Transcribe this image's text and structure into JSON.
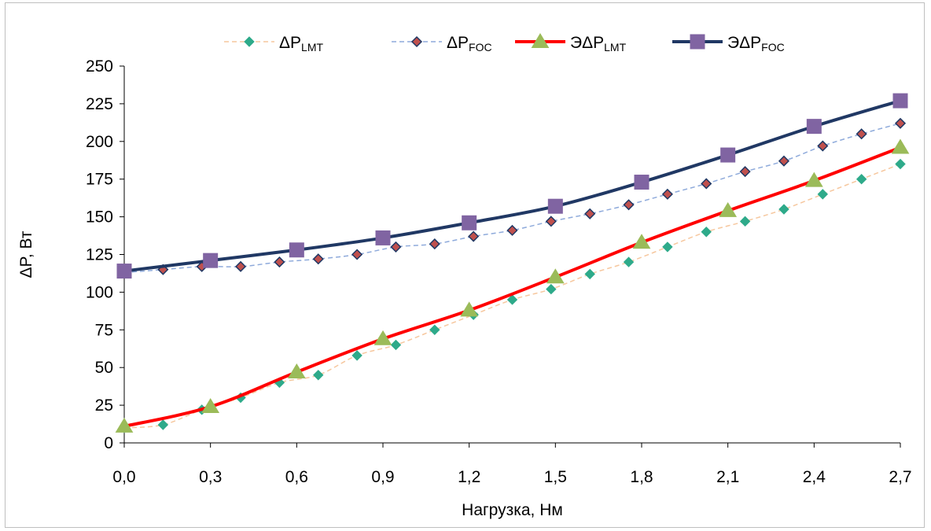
{
  "chart_data": {
    "type": "line",
    "xlabel": "Нагрузка, Нм",
    "ylabel": "ΔP, Вт",
    "xlim": [
      0,
      2.7
    ],
    "ylim": [
      0,
      250
    ],
    "x_ticks": [
      "0,0",
      "0,3",
      "0,6",
      "0,9",
      "1,2",
      "1,5",
      "1,8",
      "2,1",
      "2,4",
      "2,7"
    ],
    "y_ticks": [
      "0",
      "25",
      "50",
      "75",
      "100",
      "125",
      "150",
      "175",
      "200",
      "225",
      "250"
    ],
    "legend_position": "top",
    "grid": false,
    "series": [
      {
        "name": "ΔP",
        "name_sub": "LMT",
        "style": "dashed-diamond",
        "color": "#f6c79e",
        "marker_color": "#2eaa8a",
        "x": [
          0,
          0.135,
          0.27,
          0.405,
          0.54,
          0.675,
          0.81,
          0.945,
          1.08,
          1.215,
          1.35,
          1.485,
          1.62,
          1.755,
          1.89,
          2.025,
          2.16,
          2.295,
          2.43,
          2.565,
          2.7
        ],
        "y": [
          10,
          12,
          22,
          30,
          40,
          45,
          58,
          65,
          75,
          85,
          95,
          102,
          112,
          120,
          130,
          140,
          147,
          155,
          165,
          175,
          185
        ]
      },
      {
        "name": "ΔP",
        "name_sub": "FOC",
        "style": "dashed-diamond",
        "color": "#8eaadb",
        "marker_color": "#c0504d",
        "marker_edge": "#1f3864",
        "x": [
          0,
          0.135,
          0.27,
          0.405,
          0.54,
          0.675,
          0.81,
          0.945,
          1.08,
          1.215,
          1.35,
          1.485,
          1.62,
          1.755,
          1.89,
          2.025,
          2.16,
          2.295,
          2.43,
          2.565,
          2.7
        ],
        "y": [
          113,
          115,
          117,
          117,
          120,
          122,
          125,
          130,
          132,
          137,
          141,
          147,
          152,
          158,
          165,
          172,
          180,
          187,
          197,
          205,
          212
        ]
      },
      {
        "name": "ЭΔP",
        "name_sub": "LMT",
        "style": "solid-triangle",
        "color": "#ff0000",
        "marker_color": "#9bbb59",
        "x": [
          0,
          0.3,
          0.6,
          0.9,
          1.2,
          1.5,
          1.8,
          2.1,
          2.4,
          2.7
        ],
        "y": [
          11,
          24,
          47,
          69,
          88,
          110,
          133,
          154,
          174,
          196
        ]
      },
      {
        "name": "ЭΔP",
        "name_sub": "FOC",
        "style": "solid-square",
        "color": "#203864",
        "marker_color": "#8064a2",
        "x": [
          0,
          0.3,
          0.6,
          0.9,
          1.2,
          1.5,
          1.8,
          2.1,
          2.4,
          2.7
        ],
        "y": [
          114,
          121,
          128,
          136,
          146,
          157,
          173,
          191,
          210,
          227
        ]
      }
    ]
  }
}
